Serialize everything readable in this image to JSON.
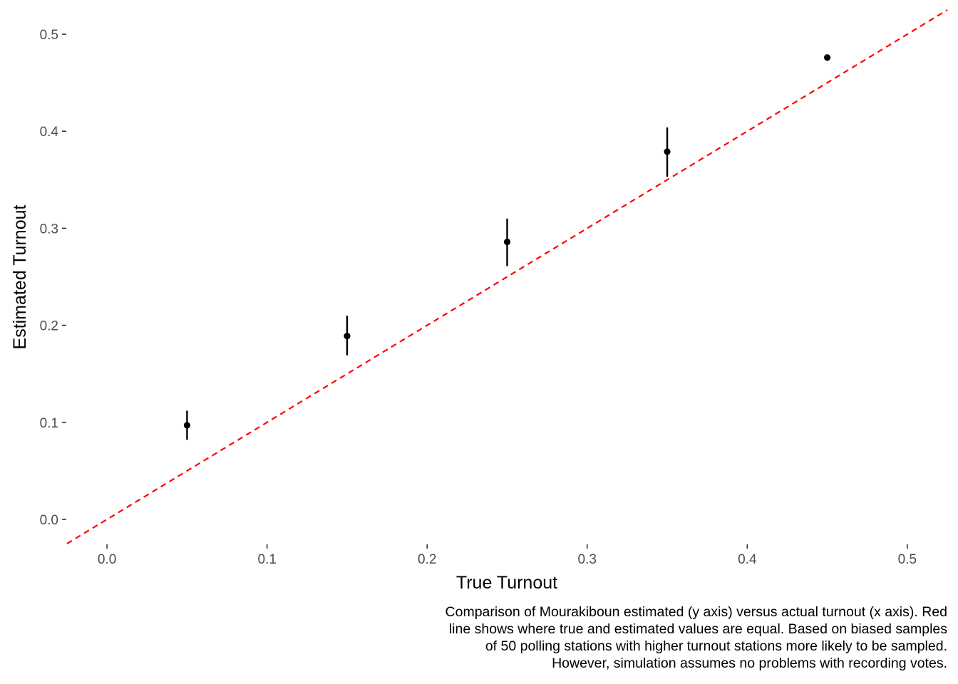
{
  "chart_data": {
    "type": "scatter",
    "title": "",
    "xlabel": "True Turnout",
    "ylabel": "Estimated Turnout",
    "xlim": [
      -0.025,
      0.525
    ],
    "ylim": [
      -0.025,
      0.525
    ],
    "x_ticks": [
      0.0,
      0.1,
      0.2,
      0.3,
      0.4,
      0.5
    ],
    "x_tick_labels": [
      "0.0",
      "0.1",
      "0.2",
      "0.3",
      "0.4",
      "0.5"
    ],
    "y_ticks": [
      0.0,
      0.1,
      0.2,
      0.3,
      0.4,
      0.5
    ],
    "y_tick_labels": [
      "0.0",
      "0.1",
      "0.2",
      "0.3",
      "0.4",
      "0.5"
    ],
    "grid": false,
    "legend": "none",
    "series": [
      {
        "points": [
          {
            "x": 0.05,
            "y": 0.097,
            "ymin": 0.082,
            "ymax": 0.112
          },
          {
            "x": 0.15,
            "y": 0.189,
            "ymin": 0.169,
            "ymax": 0.21
          },
          {
            "x": 0.25,
            "y": 0.286,
            "ymin": 0.261,
            "ymax": 0.31
          },
          {
            "x": 0.35,
            "y": 0.379,
            "ymin": 0.353,
            "ymax": 0.404
          },
          {
            "x": 0.45,
            "y": 0.476,
            "ymin": 0.476,
            "ymax": 0.476
          }
        ],
        "color": "#000000"
      }
    ],
    "reference_line": {
      "slope": 1,
      "intercept": 0,
      "style": "dashed",
      "color": "#ff0000"
    },
    "caption": [
      "Comparison of Mourakiboun estimated (y axis) versus actual turnout (x axis). Red",
      "line shows where true and estimated values are equal. Based on biased samples",
      "of 50 polling stations with higher turnout stations more likely to be sampled.",
      "However, simulation assumes no problems with recording votes."
    ]
  }
}
